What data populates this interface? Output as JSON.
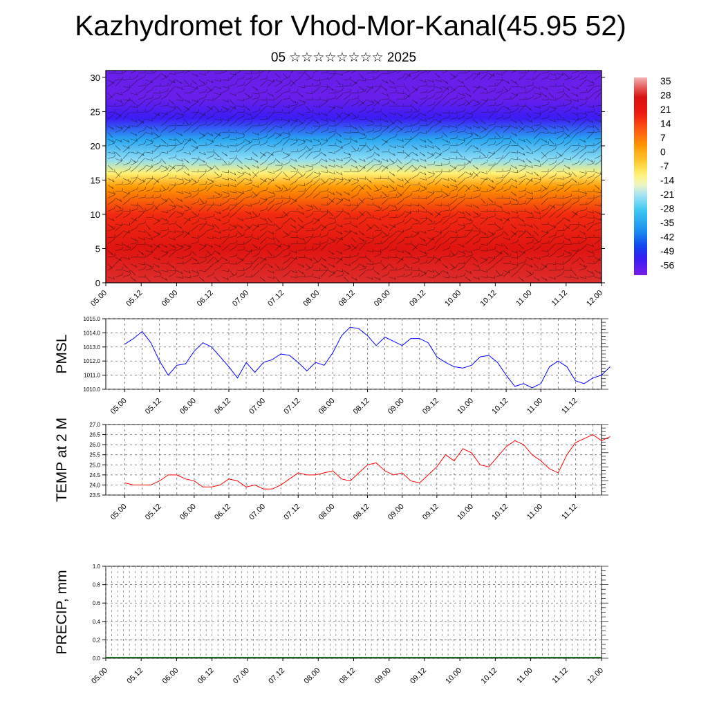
{
  "header": {
    "title": "Kazhydromet for Vhod-Mor-Kanal(45.95 52)",
    "subtitle": "05 ☆☆☆☆☆☆☆☆ 2025"
  },
  "time_ticks": [
    "05.00",
    "05.12",
    "06.00",
    "06.12",
    "07.00",
    "07.12",
    "08.00",
    "08.12",
    "09.00",
    "09.12",
    "10.00",
    "10.12",
    "11.00",
    "11.12",
    "12.00"
  ],
  "chart_data": [
    {
      "type": "heatmap",
      "description_fields": "cross-section temperature with wind barbs",
      "x_ticks": [
        "05.00",
        "05.12",
        "06.00",
        "06.12",
        "07.00",
        "07.12",
        "08.00",
        "08.12",
        "09.00",
        "09.12",
        "10.00",
        "10.12",
        "11.00",
        "11.12",
        "12.00"
      ],
      "ylim": [
        0,
        31
      ],
      "y_ticks": [
        0,
        5,
        10,
        15,
        20,
        25,
        30
      ],
      "colorbar": {
        "labels": [
          "35",
          "28",
          "21",
          "14",
          "7",
          "0",
          "-7",
          "-14",
          "-21",
          "-28",
          "-35",
          "-42",
          "-49",
          "-56"
        ],
        "range": [
          -60,
          38
        ]
      },
      "layers": [
        {
          "level": 0,
          "value": 30
        },
        {
          "level": 5,
          "value": 25
        },
        {
          "level": 10,
          "value": 18
        },
        {
          "level": 14,
          "value": 4
        },
        {
          "level": 16,
          "value": -10
        },
        {
          "level": 18,
          "value": -22
        },
        {
          "level": 21,
          "value": -34
        },
        {
          "level": 24,
          "value": -52
        },
        {
          "level": 27,
          "value": -58
        },
        {
          "level": 31,
          "value": -58
        }
      ]
    },
    {
      "type": "line",
      "ylabel": "PMSL",
      "ylim": [
        1010.0,
        1015.0
      ],
      "y_ticks": [
        "1010.0",
        "1011.0",
        "1012.0",
        "1013.0",
        "1014.0",
        "1015.0"
      ],
      "x_ticks": [
        "05.00",
        "05.12",
        "06.00",
        "06.12",
        "07.00",
        "07.12",
        "08.00",
        "08.12",
        "09.00",
        "09.12",
        "10.00",
        "10.12",
        "11.00",
        "11.12",
        "12.00"
      ],
      "color": "#0000ff",
      "series": [
        {
          "x": [
            0,
            3,
            6,
            9,
            12,
            15,
            18,
            21,
            24,
            27,
            30,
            33,
            36,
            39,
            42,
            45,
            48,
            51,
            54,
            57,
            60,
            63,
            66,
            69,
            72,
            75,
            78,
            81,
            84,
            87,
            90,
            93,
            96,
            99,
            102,
            105,
            108,
            111,
            114,
            117,
            120,
            123,
            126,
            129,
            132,
            135,
            138,
            141,
            144,
            147,
            150,
            153,
            156,
            159,
            162,
            165,
            168
          ],
          "values": [
            1013.2,
            1013.6,
            1014.1,
            1013.3,
            1012.0,
            1011.0,
            1011.7,
            1011.8,
            1012.7,
            1013.3,
            1013.0,
            1012.3,
            1011.6,
            1010.8,
            1011.9,
            1011.2,
            1011.9,
            1012.1,
            1012.5,
            1012.4,
            1011.9,
            1011.3,
            1011.9,
            1011.7,
            1012.6,
            1013.8,
            1014.4,
            1014.3,
            1013.8,
            1013.1,
            1013.7,
            1013.4,
            1013.1,
            1013.6,
            1013.6,
            1013.3,
            1012.3,
            1011.9,
            1011.6,
            1011.5,
            1011.7,
            1012.3,
            1012.4,
            1011.9,
            1011.0,
            1010.2,
            1010.4,
            1010.1,
            1010.4,
            1011.6,
            1012.0,
            1011.6,
            1010.6,
            1010.4,
            1010.8,
            1011.0,
            1011.6
          ]
        }
      ]
    },
    {
      "type": "line",
      "ylabel": "TEMP at 2 M",
      "ylim": [
        23.5,
        27.0
      ],
      "y_ticks": [
        "23.5",
        "24.0",
        "24.5",
        "25.0",
        "25.5",
        "26.0",
        "26.5",
        "27.0"
      ],
      "x_ticks": [
        "05.00",
        "05.12",
        "06.00",
        "06.12",
        "07.00",
        "07.12",
        "08.00",
        "08.12",
        "09.00",
        "09.12",
        "10.00",
        "10.12",
        "11.00",
        "11.12",
        "12.00"
      ],
      "color": "#ff0000",
      "series": [
        {
          "x": [
            0,
            3,
            6,
            9,
            12,
            15,
            18,
            21,
            24,
            27,
            30,
            33,
            36,
            39,
            42,
            45,
            48,
            51,
            54,
            57,
            60,
            63,
            66,
            69,
            72,
            75,
            78,
            81,
            84,
            87,
            90,
            93,
            96,
            99,
            102,
            105,
            108,
            111,
            114,
            117,
            120,
            123,
            126,
            129,
            132,
            135,
            138,
            141,
            144,
            147,
            150,
            153,
            156,
            159,
            162,
            165,
            168
          ],
          "values": [
            24.1,
            24.0,
            24.0,
            24.0,
            24.2,
            24.5,
            24.5,
            24.3,
            24.2,
            23.9,
            23.9,
            24.0,
            24.3,
            24.2,
            23.9,
            24.0,
            23.8,
            23.8,
            24.0,
            24.3,
            24.6,
            24.5,
            24.5,
            24.6,
            24.7,
            24.3,
            24.2,
            24.6,
            25.0,
            25.1,
            24.7,
            24.5,
            24.6,
            24.2,
            24.1,
            24.5,
            24.9,
            25.5,
            25.2,
            25.8,
            25.6,
            25.0,
            24.9,
            25.4,
            25.9,
            26.2,
            26.0,
            25.5,
            25.2,
            24.8,
            24.6,
            25.5,
            26.1,
            26.3,
            26.5,
            26.2,
            26.4
          ]
        }
      ]
    },
    {
      "type": "bar",
      "ylabel": "PRECIP, mm",
      "ylim": [
        0.0,
        1.0
      ],
      "y_ticks": [
        "0.0",
        "0.2",
        "0.4",
        "0.6",
        "0.8",
        "1.0"
      ],
      "x_ticks": [
        "05.00",
        "05.12",
        "06.00",
        "06.12",
        "07.00",
        "07.12",
        "08.00",
        "08.12",
        "09.00",
        "09.12",
        "10.00",
        "10.12",
        "11.00",
        "11.12",
        "12.00"
      ],
      "values": []
    }
  ]
}
